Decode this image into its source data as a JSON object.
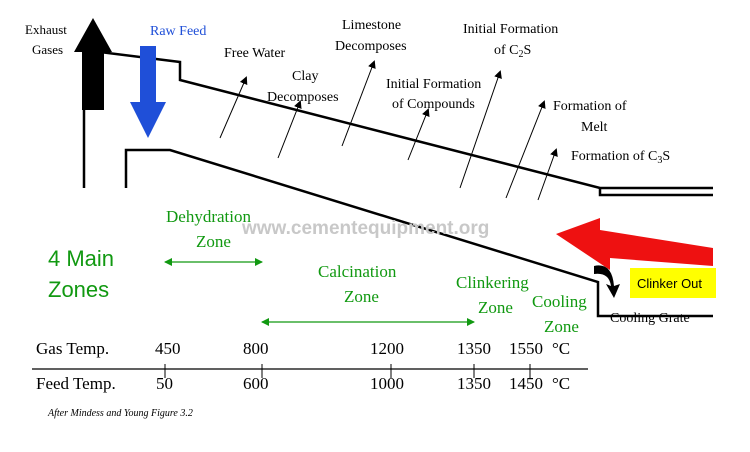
{
  "labels": {
    "exhaust_gases": [
      "Exhaust",
      "Gases"
    ],
    "raw_feed": "Raw Feed",
    "free_water": "Free Water",
    "clay_decomposes": [
      "Clay",
      "Decomposes"
    ],
    "limestone_decomposes": [
      "Limestone",
      "Decomposes"
    ],
    "initial_compounds": [
      "Initial Formation",
      "of Compounds"
    ],
    "initial_c2s": [
      "Initial Formation",
      "of C",
      "2",
      "S"
    ],
    "formation_melt": [
      "Formation of",
      "Melt"
    ],
    "formation_c3s": [
      "Formation of C",
      "3",
      "S"
    ],
    "watermark": "www.cementequipment.org",
    "main_zones": [
      "4 Main",
      "Zones"
    ],
    "dehydration_zone": [
      "Dehydration",
      "Zone"
    ],
    "calcination_zone": [
      "Calcination",
      "Zone"
    ],
    "clinkering_zone": [
      "Clinkering",
      "Zone"
    ],
    "cooling_zone": [
      "Cooling",
      "Zone"
    ],
    "clinker_out": "Clinker Out",
    "cooling_grate": "Cooling Grate",
    "caption": "After Mindess and Young Figure 3.2"
  },
  "temperatures": {
    "gas_label": "Gas Temp.",
    "gas_values": [
      "450",
      "800",
      "1200",
      "1350",
      "1550"
    ],
    "feed_label": "Feed Temp.",
    "feed_values": [
      "50",
      "600",
      "1000",
      "1350",
      "1450"
    ],
    "unit": "°C"
  },
  "colors": {
    "raw_feed_arrow": "#1f4fd8",
    "exhaust_arrow": "#000000",
    "hot_gas_arrow": "#ee1111",
    "zone_text": "#119911",
    "clinker_box": "#ffff00",
    "watermark": "#c8c8c8",
    "raw_feed_text": "#1f4fd8"
  }
}
